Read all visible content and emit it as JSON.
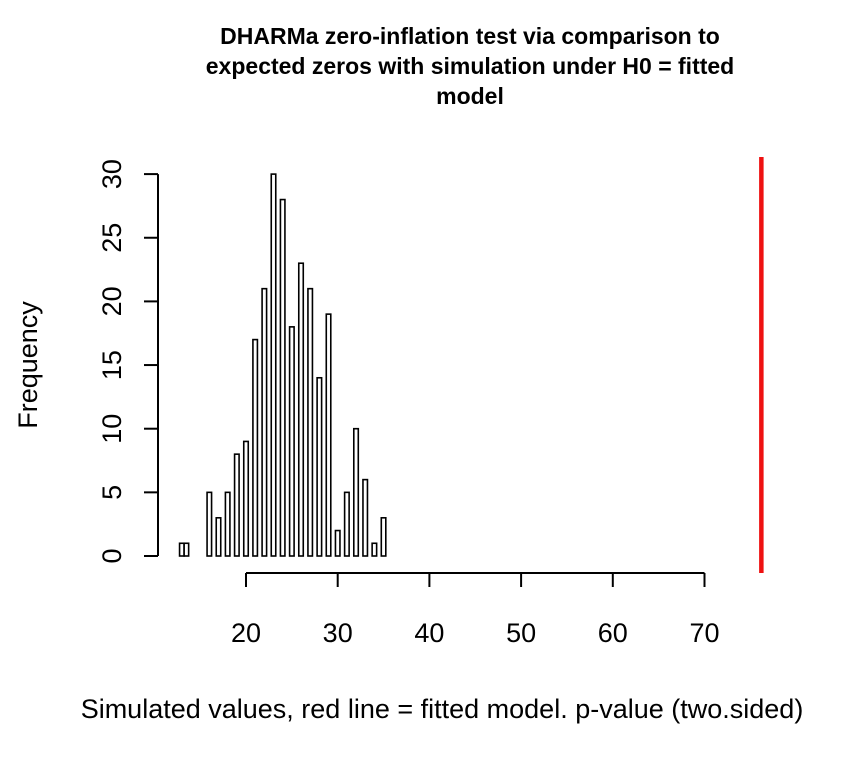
{
  "chart_data": {
    "type": "bar",
    "title_lines": [
      "DHARMa zero-inflation test via comparison to",
      "expected zeros with simulation under H0 = fitted",
      "model"
    ],
    "xlabel": "Simulated values, red line = fitted model. p-value (two.sided)",
    "ylabel": "Frequency",
    "x_ticks": [
      20,
      30,
      40,
      50,
      60,
      70
    ],
    "y_ticks": [
      0,
      5,
      10,
      15,
      20,
      25,
      30
    ],
    "xlim": [
      20,
      70
    ],
    "ylim": [
      0,
      30
    ],
    "bins": [
      {
        "x": 13.0,
        "count": 1
      },
      {
        "x": 13.5,
        "count": 1
      },
      {
        "x": 16.0,
        "count": 5
      },
      {
        "x": 17.0,
        "count": 3
      },
      {
        "x": 18.0,
        "count": 5
      },
      {
        "x": 19.0,
        "count": 8
      },
      {
        "x": 20.0,
        "count": 9
      },
      {
        "x": 21.0,
        "count": 17
      },
      {
        "x": 22.0,
        "count": 21
      },
      {
        "x": 23.0,
        "count": 30
      },
      {
        "x": 24.0,
        "count": 28
      },
      {
        "x": 25.0,
        "count": 18
      },
      {
        "x": 26.0,
        "count": 23
      },
      {
        "x": 27.0,
        "count": 21
      },
      {
        "x": 28.0,
        "count": 14
      },
      {
        "x": 29.0,
        "count": 19
      },
      {
        "x": 30.0,
        "count": 2
      },
      {
        "x": 31.0,
        "count": 5
      },
      {
        "x": 32.0,
        "count": 10
      },
      {
        "x": 33.0,
        "count": 6
      },
      {
        "x": 34.0,
        "count": 1
      },
      {
        "x": 35.0,
        "count": 3
      }
    ],
    "observed_value": 76.2,
    "observed_line_color": "#ee1111",
    "bar_fill": "#ffffff",
    "bar_stroke": "#000000"
  }
}
